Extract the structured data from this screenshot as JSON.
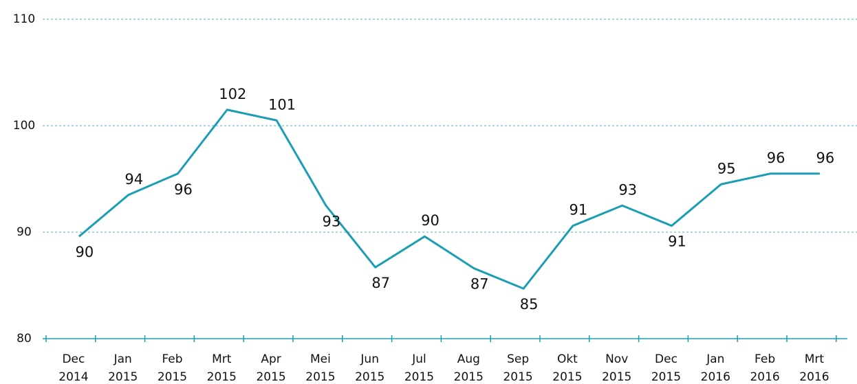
{
  "chart_data": {
    "type": "line",
    "categories": [
      [
        "Dec",
        "2014"
      ],
      [
        "Jan",
        "2015"
      ],
      [
        "Feb",
        "2015"
      ],
      [
        "Mrt",
        "2015"
      ],
      [
        "Apr",
        "2015"
      ],
      [
        "Mei",
        "2015"
      ],
      [
        "Jun",
        "2015"
      ],
      [
        "Jul",
        "2015"
      ],
      [
        "Aug",
        "2015"
      ],
      [
        "Sep",
        "2015"
      ],
      [
        "Okt",
        "2015"
      ],
      [
        "Nov",
        "2015"
      ],
      [
        "Dec",
        "2015"
      ],
      [
        "Jan",
        "2016"
      ],
      [
        "Feb",
        "2016"
      ],
      [
        "Mrt",
        "2016"
      ]
    ],
    "values": [
      89.6,
      93.5,
      95.5,
      101.5,
      100.5,
      92.5,
      86.7,
      89.6,
      86.6,
      84.7,
      90.6,
      92.5,
      90.6,
      94.5,
      95.5,
      95.5
    ],
    "value_labels": [
      "90",
      "94",
      "96",
      "102",
      "101",
      "93",
      "87",
      "90",
      "87",
      "85",
      "91",
      "93",
      "91",
      "95",
      "96",
      "96"
    ],
    "color": "#1b9db4",
    "ylim": [
      80,
      110
    ],
    "yticks": [
      80,
      90,
      100,
      110
    ],
    "grid": true
  }
}
